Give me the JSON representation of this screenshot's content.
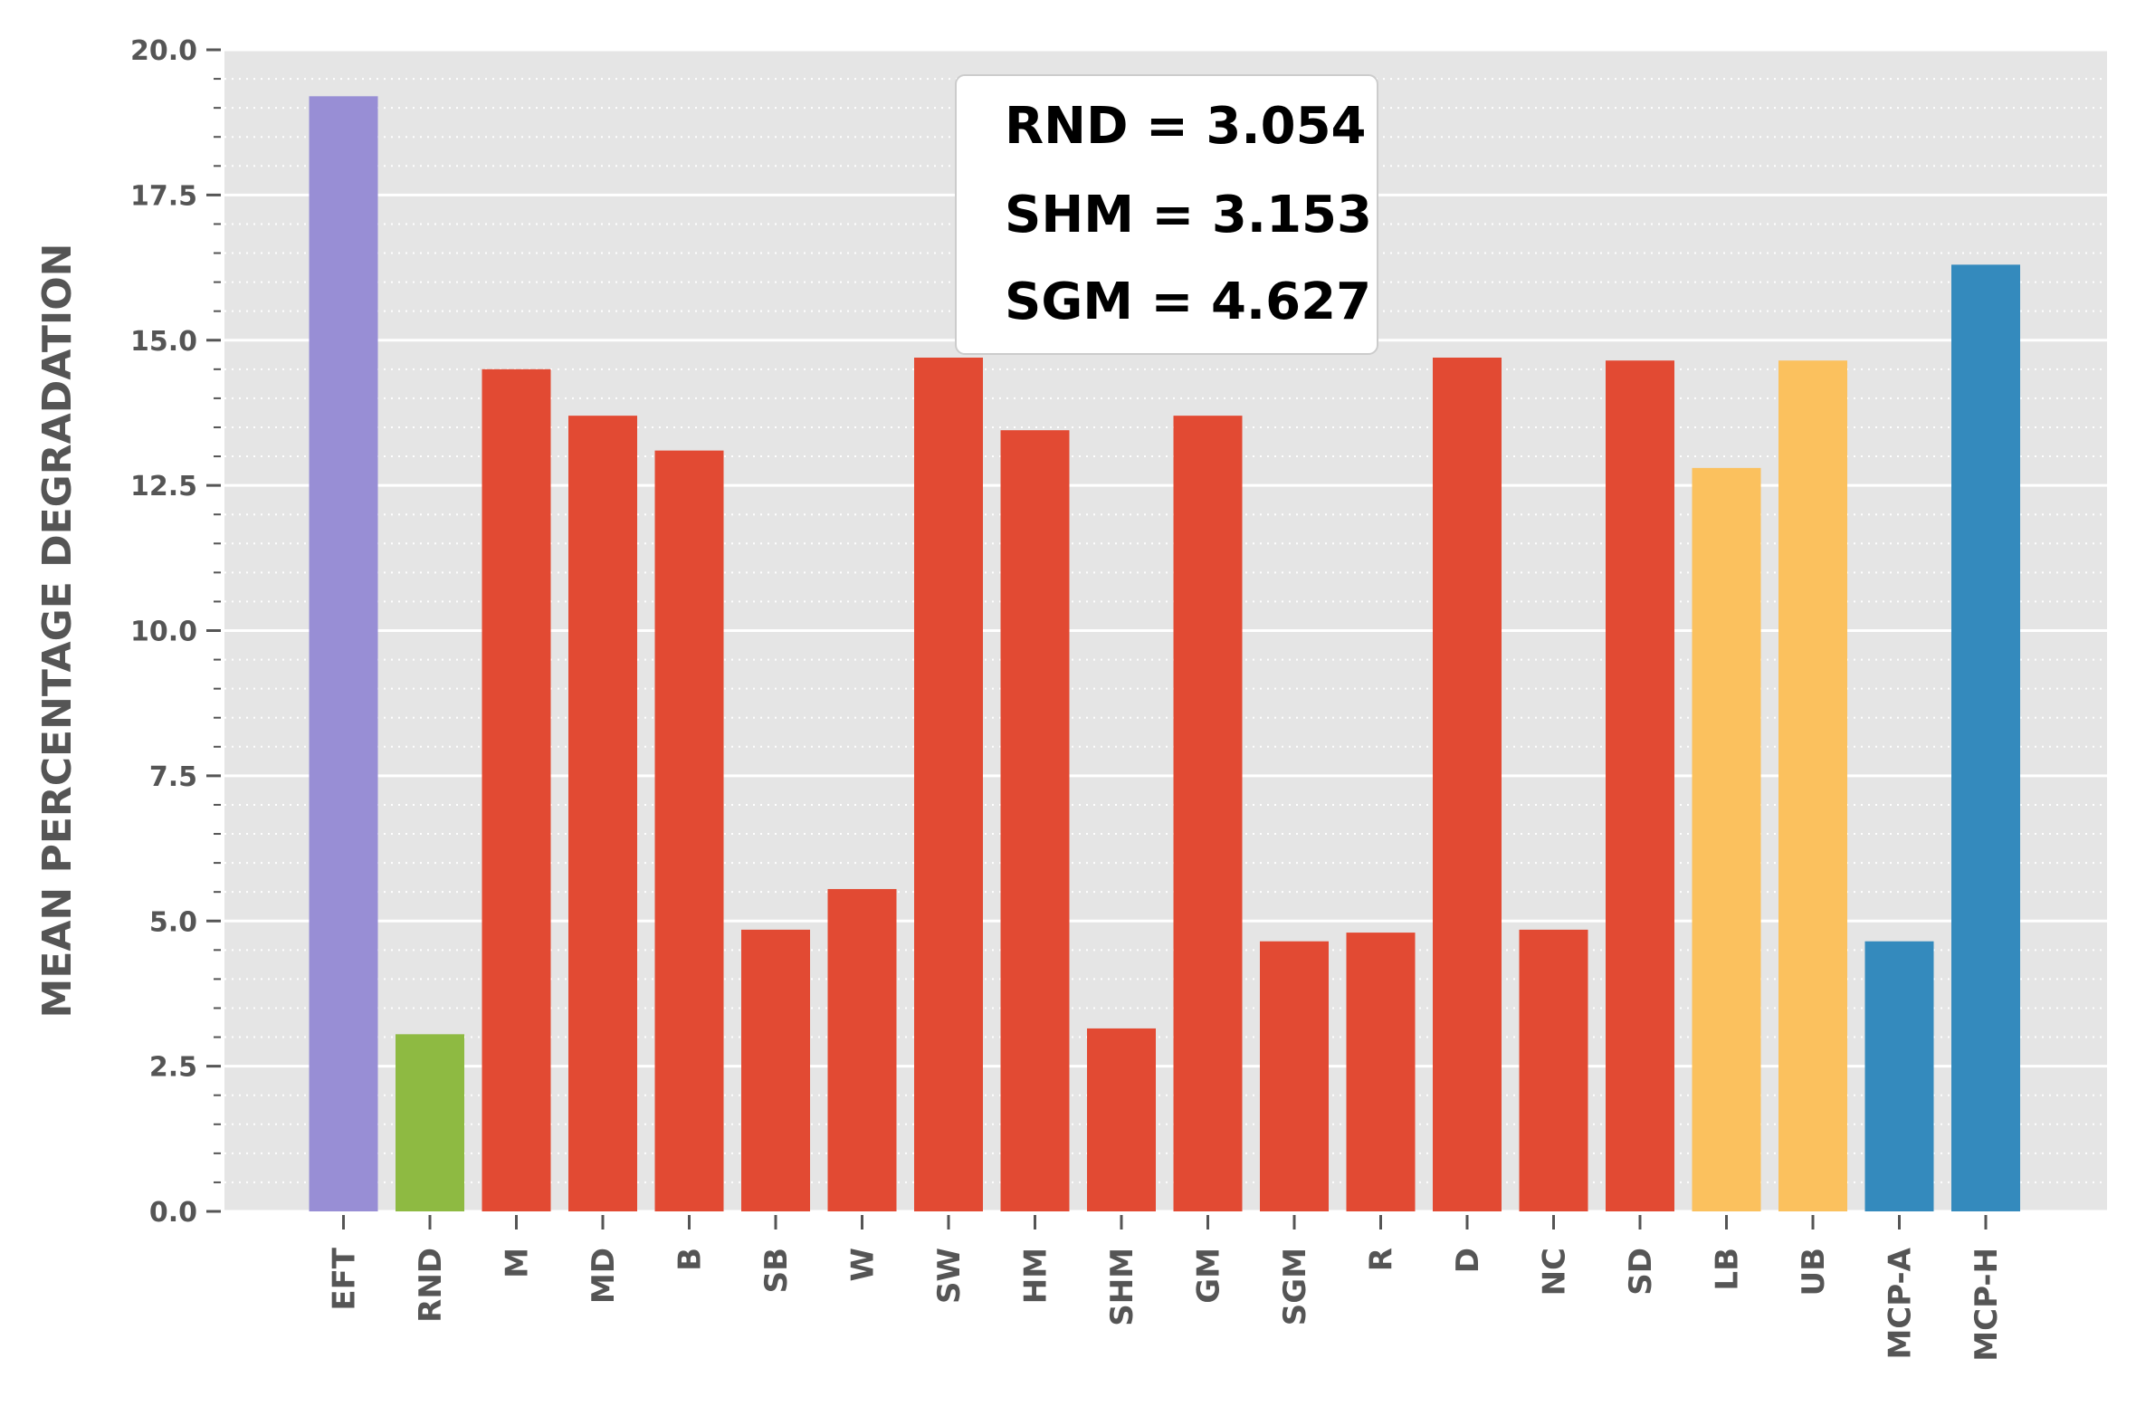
{
  "chart_data": {
    "type": "bar",
    "title": "",
    "xlabel": "",
    "ylabel": "MEAN PERCENTAGE DEGRADATION",
    "ylim": [
      0,
      20
    ],
    "yticks": [
      "0.0",
      "2.5",
      "5.0",
      "7.5",
      "10.0",
      "12.5",
      "15.0",
      "17.5",
      "20.0"
    ],
    "grid": true,
    "categories": [
      "EFT",
      "RND",
      "M",
      "MD",
      "B",
      "SB",
      "W",
      "SW",
      "HM",
      "SHM",
      "GM",
      "SGM",
      "R",
      "D",
      "NC",
      "SD",
      "LB",
      "UB",
      "MCP-A",
      "MCP-H"
    ],
    "values": [
      19.2,
      3.05,
      14.5,
      13.7,
      13.1,
      4.85,
      5.55,
      14.7,
      13.45,
      3.15,
      13.7,
      4.65,
      4.8,
      14.7,
      4.85,
      14.65,
      12.8,
      14.65,
      4.65,
      16.3
    ],
    "bar_colors": [
      "#988ED5",
      "#8EBA42",
      "#E24A33",
      "#E24A33",
      "#E24A33",
      "#E24A33",
      "#E24A33",
      "#E24A33",
      "#E24A33",
      "#E24A33",
      "#E24A33",
      "#E24A33",
      "#E24A33",
      "#E24A33",
      "#E24A33",
      "#E24A33",
      "#FBC15E",
      "#FBC15E",
      "#348ABD",
      "#348ABD"
    ],
    "annotation": [
      "RND = 3.054",
      "SHM = 3.153",
      "SGM = 4.627"
    ]
  }
}
